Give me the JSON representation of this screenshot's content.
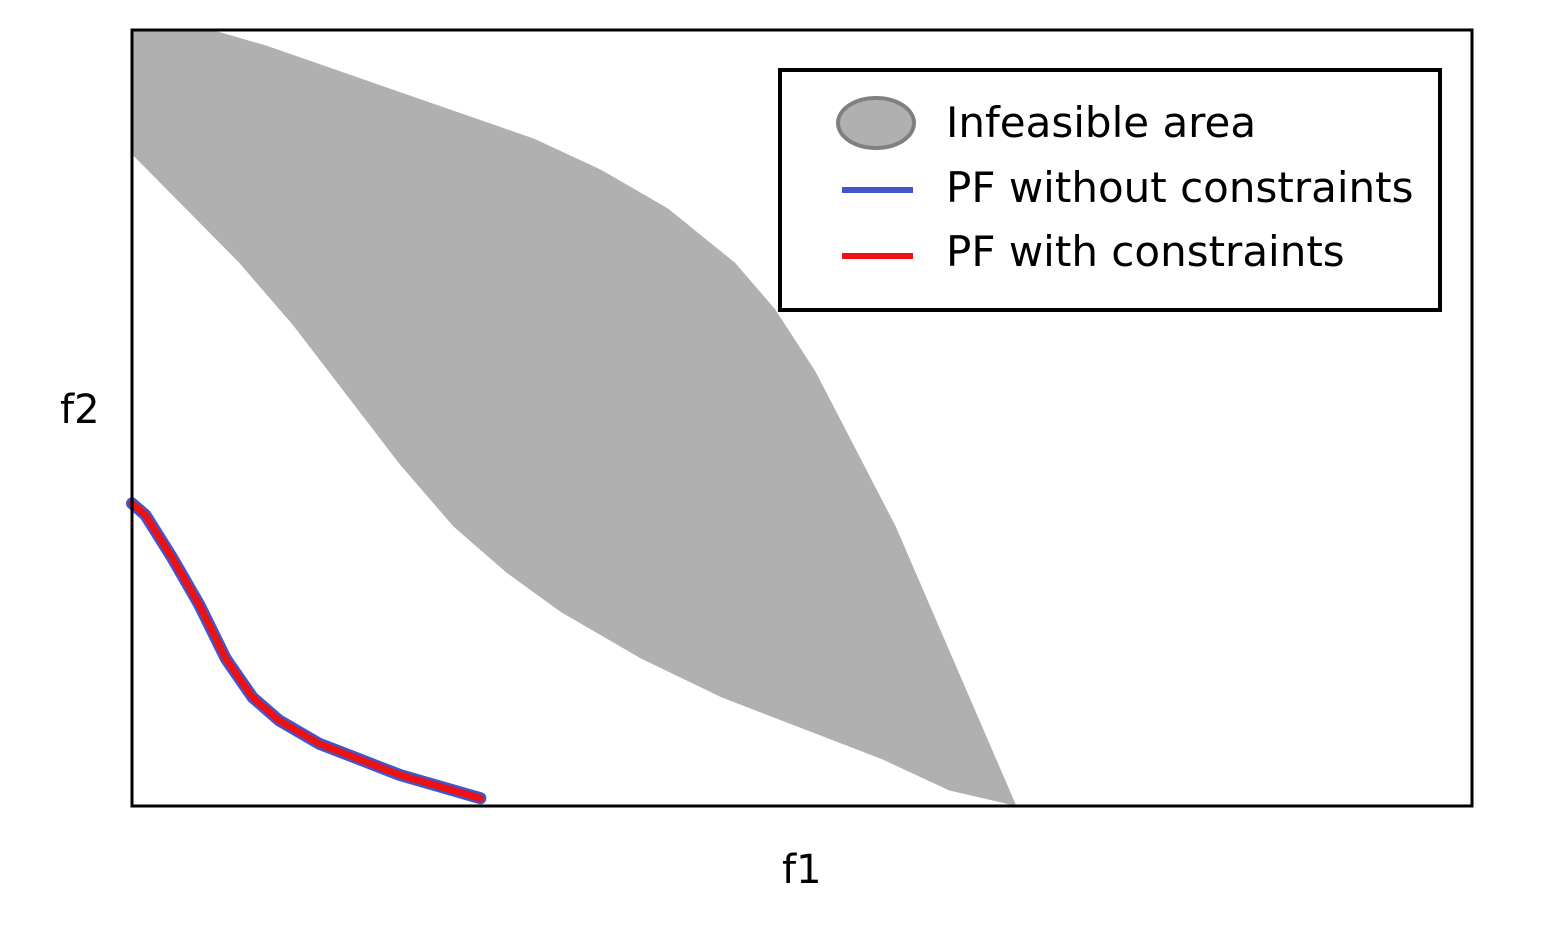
{
  "chart_data": {
    "type": "area",
    "xlabel": "f1",
    "ylabel": "f2",
    "xlim": [
      0,
      100
    ],
    "ylim": [
      0,
      100
    ],
    "grid": false,
    "legend_position": "top-right",
    "series": [
      {
        "name": "Infeasible area",
        "kind": "region",
        "color": "#b0b0b0",
        "upper": [
          [
            0,
            100
          ],
          [
            6,
            100
          ],
          [
            10,
            98
          ],
          [
            15,
            95
          ],
          [
            20,
            92
          ],
          [
            25,
            89
          ],
          [
            30,
            86
          ],
          [
            35,
            82
          ],
          [
            40,
            77
          ],
          [
            45,
            70
          ],
          [
            48,
            64
          ],
          [
            51,
            56
          ],
          [
            54,
            46
          ],
          [
            57,
            36
          ],
          [
            60,
            24
          ],
          [
            63,
            12
          ],
          [
            66,
            0
          ]
        ],
        "lower": [
          [
            0,
            84
          ],
          [
            4,
            77
          ],
          [
            8,
            70
          ],
          [
            12,
            62
          ],
          [
            16,
            53
          ],
          [
            20,
            44
          ],
          [
            24,
            36
          ],
          [
            28,
            30
          ],
          [
            32,
            25
          ],
          [
            38,
            19
          ],
          [
            44,
            14
          ],
          [
            50,
            10
          ],
          [
            56,
            6
          ],
          [
            61,
            2
          ],
          [
            66,
            0
          ]
        ]
      },
      {
        "name": "PF without constraints",
        "kind": "line",
        "color": "#4455cc",
        "points": [
          [
            0,
            39
          ],
          [
            1,
            37.5
          ],
          [
            3,
            32
          ],
          [
            5,
            26
          ],
          [
            7,
            19
          ],
          [
            9,
            14
          ],
          [
            11,
            11
          ],
          [
            14,
            8
          ],
          [
            17,
            6
          ],
          [
            20,
            4
          ],
          [
            23,
            2.5
          ],
          [
            26,
            1
          ]
        ]
      },
      {
        "name": "PF with constraints",
        "kind": "line",
        "color": "#ee1111",
        "points": [
          [
            0,
            39
          ],
          [
            1,
            37.5
          ],
          [
            3,
            32
          ],
          [
            5,
            26
          ],
          [
            7,
            19
          ],
          [
            9,
            14
          ],
          [
            11,
            11
          ],
          [
            14,
            8
          ],
          [
            17,
            6
          ],
          [
            20,
            4
          ],
          [
            23,
            2.5
          ],
          [
            26,
            1
          ]
        ]
      }
    ]
  }
}
